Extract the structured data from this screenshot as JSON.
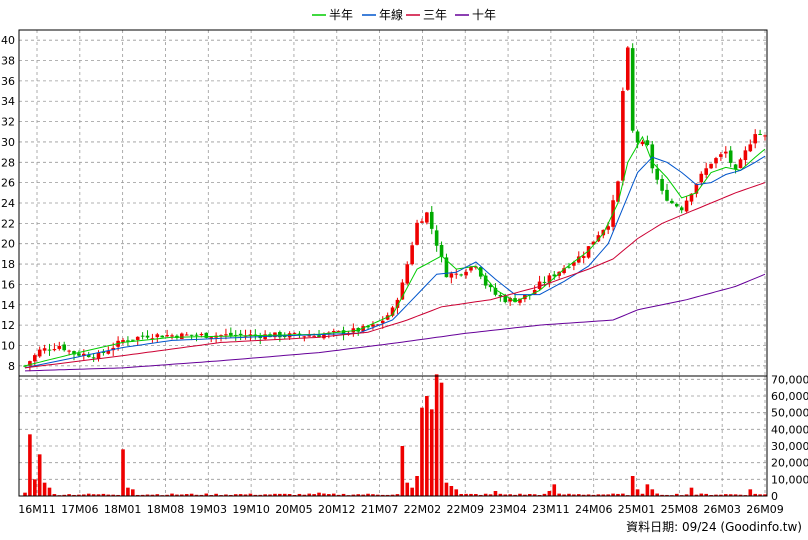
{
  "chart_data": {
    "type": "candlestick",
    "legend": [
      {
        "name": "半年",
        "color": "#00cc00"
      },
      {
        "name": "年線",
        "color": "#0055cc"
      },
      {
        "name": "三年",
        "color": "#cc0033"
      },
      {
        "name": "十年",
        "color": "#660099"
      }
    ],
    "legend_position": "top",
    "price_axis": {
      "min": 7,
      "max": 41,
      "ticks": [
        8,
        10,
        12,
        14,
        16,
        18,
        20,
        22,
        24,
        26,
        28,
        30,
        32,
        34,
        36,
        38,
        40
      ]
    },
    "volume_axis": {
      "min": 0,
      "max": 72000,
      "ticks": [
        0,
        10000,
        20000,
        30000,
        40000,
        50000,
        60000,
        70000
      ],
      "tick_labels": [
        "0",
        "10,000",
        "20,000",
        "30,000",
        "40,000",
        "50,000",
        "60,000",
        "70,000"
      ]
    },
    "x_axis_labels": [
      "16M11",
      "17M06",
      "18M01",
      "18M08",
      "19M03",
      "19M10",
      "20M05",
      "20M12",
      "21M07",
      "22M02",
      "22M09",
      "23M04",
      "23M11",
      "24M06",
      "25M01",
      "25M08",
      "26M03",
      "26M09"
    ],
    "grid": true,
    "source_text": "資料日期: 09/24  (Goodinfo.tw)",
    "colors": {
      "up": "#ee0000",
      "down": "#00aa00",
      "volume": "#ee0000",
      "grid": "#999999"
    },
    "price_anchors": [
      [
        0,
        8
      ],
      [
        3,
        9.5
      ],
      [
        7,
        10
      ],
      [
        10,
        9.2
      ],
      [
        15,
        9
      ],
      [
        20,
        10.5
      ],
      [
        25,
        11
      ],
      [
        30,
        11
      ],
      [
        40,
        11
      ],
      [
        50,
        11
      ],
      [
        60,
        11
      ],
      [
        68,
        11.5
      ],
      [
        72,
        12
      ],
      [
        75,
        13.5
      ],
      [
        77,
        16
      ],
      [
        78,
        18
      ],
      [
        80,
        22
      ],
      [
        82,
        23
      ],
      [
        84,
        20
      ],
      [
        86,
        17
      ],
      [
        88,
        17
      ],
      [
        90,
        17.5
      ],
      [
        92,
        18
      ],
      [
        94,
        16
      ],
      [
        96,
        15
      ],
      [
        98,
        14.5
      ],
      [
        100,
        14.5
      ],
      [
        103,
        15
      ],
      [
        105,
        16
      ],
      [
        108,
        17
      ],
      [
        111,
        18
      ],
      [
        114,
        19
      ],
      [
        117,
        21
      ],
      [
        119,
        22
      ],
      [
        121,
        26
      ],
      [
        122,
        35
      ],
      [
        123,
        39
      ],
      [
        124,
        31
      ],
      [
        125,
        30
      ],
      [
        127,
        29.5
      ],
      [
        128,
        27.5
      ],
      [
        130,
        25
      ],
      [
        132,
        24
      ],
      [
        134,
        23.5
      ],
      [
        137,
        26
      ],
      [
        140,
        28
      ],
      [
        143,
        29
      ],
      [
        145,
        27
      ],
      [
        147,
        29
      ],
      [
        149,
        31
      ],
      [
        151,
        30.5
      ]
    ],
    "ma_half_year": [
      [
        0,
        8
      ],
      [
        10,
        9.2
      ],
      [
        20,
        10.3
      ],
      [
        30,
        10.8
      ],
      [
        50,
        11
      ],
      [
        60,
        11.1
      ],
      [
        68,
        11.5
      ],
      [
        75,
        13
      ],
      [
        80,
        17.5
      ],
      [
        85,
        18.8
      ],
      [
        88,
        17.5
      ],
      [
        92,
        17.8
      ],
      [
        96,
        15.5
      ],
      [
        100,
        14.3
      ],
      [
        105,
        15.4
      ],
      [
        110,
        17.5
      ],
      [
        115,
        19.3
      ],
      [
        118,
        21
      ],
      [
        121,
        24
      ],
      [
        123,
        28
      ],
      [
        126,
        30.5
      ],
      [
        128,
        28
      ],
      [
        131,
        26.5
      ],
      [
        134,
        24.5
      ],
      [
        137,
        25
      ],
      [
        140,
        27
      ],
      [
        143,
        27.5
      ],
      [
        146,
        27.2
      ],
      [
        149,
        28.5
      ],
      [
        151,
        29.3
      ]
    ],
    "ma_year": [
      [
        0,
        7.8
      ],
      [
        10,
        8.8
      ],
      [
        20,
        9.8
      ],
      [
        30,
        10.5
      ],
      [
        50,
        10.9
      ],
      [
        68,
        11.2
      ],
      [
        75,
        12.5
      ],
      [
        80,
        15
      ],
      [
        84,
        17
      ],
      [
        88,
        17.2
      ],
      [
        92,
        18.2
      ],
      [
        96,
        16.5
      ],
      [
        100,
        15
      ],
      [
        105,
        15
      ],
      [
        110,
        16.3
      ],
      [
        115,
        17.8
      ],
      [
        119,
        20
      ],
      [
        122,
        23.5
      ],
      [
        125,
        27
      ],
      [
        128,
        28.5
      ],
      [
        131,
        28
      ],
      [
        134,
        27
      ],
      [
        137,
        25.8
      ],
      [
        140,
        26
      ],
      [
        143,
        26.8
      ],
      [
        146,
        27.2
      ],
      [
        149,
        28
      ],
      [
        151,
        28.6
      ]
    ],
    "ma_three_year": [
      [
        0,
        7.8
      ],
      [
        20,
        9
      ],
      [
        40,
        10.3
      ],
      [
        60,
        10.8
      ],
      [
        70,
        11.3
      ],
      [
        78,
        12.5
      ],
      [
        85,
        13.8
      ],
      [
        95,
        14.5
      ],
      [
        105,
        15.8
      ],
      [
        115,
        17.5
      ],
      [
        120,
        18.5
      ],
      [
        125,
        20.5
      ],
      [
        130,
        22
      ],
      [
        135,
        23
      ],
      [
        140,
        24
      ],
      [
        145,
        25
      ],
      [
        151,
        26
      ]
    ],
    "ma_ten_year": [
      [
        0,
        7.5
      ],
      [
        20,
        7.8
      ],
      [
        40,
        8.5
      ],
      [
        60,
        9.3
      ],
      [
        75,
        10.2
      ],
      [
        90,
        11.2
      ],
      [
        105,
        12
      ],
      [
        120,
        12.5
      ],
      [
        125,
        13.5
      ],
      [
        135,
        14.5
      ],
      [
        145,
        15.8
      ],
      [
        151,
        17
      ]
    ],
    "volume_anchors": [
      [
        0,
        2000
      ],
      [
        1,
        37000
      ],
      [
        2,
        10000
      ],
      [
        3,
        25000
      ],
      [
        4,
        8000
      ],
      [
        5,
        5000
      ],
      [
        20,
        28000
      ],
      [
        21,
        5000
      ],
      [
        22,
        4000
      ],
      [
        60,
        2000
      ],
      [
        77,
        30000
      ],
      [
        78,
        8000
      ],
      [
        79,
        5000
      ],
      [
        80,
        12000
      ],
      [
        81,
        53000
      ],
      [
        82,
        60000
      ],
      [
        83,
        52000
      ],
      [
        84,
        73000
      ],
      [
        85,
        68000
      ],
      [
        86,
        8000
      ],
      [
        87,
        6000
      ],
      [
        88,
        4000
      ],
      [
        96,
        3000
      ],
      [
        107,
        3000
      ],
      [
        108,
        7000
      ],
      [
        124,
        12000
      ],
      [
        125,
        4000
      ],
      [
        127,
        7000
      ],
      [
        128,
        4000
      ],
      [
        136,
        5000
      ],
      [
        148,
        4000
      ],
      [
        150,
        1000
      ]
    ]
  }
}
